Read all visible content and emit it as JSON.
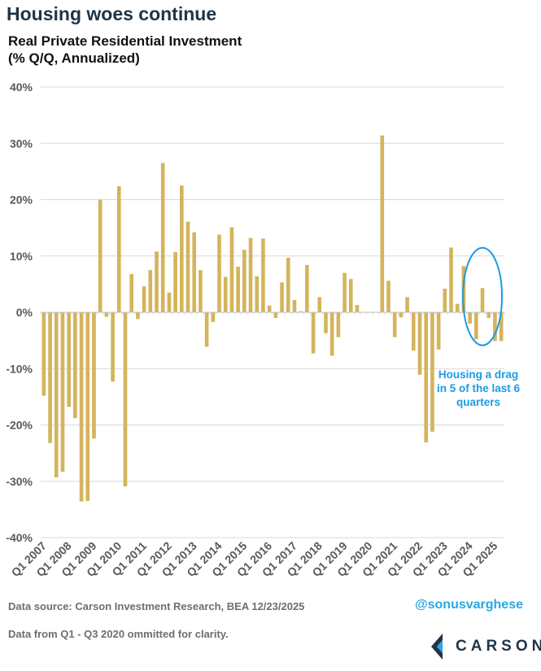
{
  "headline": "Housing woes continue",
  "chart_data": {
    "type": "bar",
    "title_line1": "Real Private Residential Investment",
    "title_line2": "(% Q/Q, Annualized)",
    "ylim": [
      -40,
      40
    ],
    "y_ticks": [
      -40,
      -30,
      -20,
      -10,
      0,
      10,
      20,
      30,
      40
    ],
    "y_tick_labels": [
      "-40%",
      "-30%",
      "-20%",
      "-10%",
      "0%",
      "10%",
      "20%",
      "30%",
      "40%"
    ],
    "grid": true,
    "bar_color": "#d4b45c",
    "x_tick_labels": [
      "Q1 2007",
      "Q1 2008",
      "Q1 2009",
      "Q1 2010",
      "Q1 2011",
      "Q1 2012",
      "Q1 2013",
      "Q1 2014",
      "Q1 2015",
      "Q1 2016",
      "Q1 2017",
      "Q1 2018",
      "Q1 2019",
      "Q1 2020",
      "Q1 2021",
      "Q1 2022",
      "Q1 2023",
      "Q1 2024",
      "Q1 2025"
    ],
    "series": [
      {
        "values": [
          -14.8,
          -23.2,
          -29.3,
          -28.3,
          -16.8,
          -18.8,
          -33.6,
          -33.5,
          -22.4,
          20.0,
          -0.8,
          -12.3,
          22.4,
          -30.9,
          6.8,
          -1.2,
          4.6,
          7.5,
          10.8,
          26.5,
          3.5,
          10.7,
          22.5,
          16.1,
          14.2,
          7.5,
          -6.1,
          -1.7,
          13.8,
          6.3,
          15.1,
          8.1,
          11.1,
          13.2,
          6.4,
          13.1,
          1.2,
          -1.0,
          5.3,
          9.7,
          2.2,
          0.2,
          8.4,
          -7.3,
          2.7,
          -3.7,
          -7.7,
          -4.4,
          7.0,
          5.9,
          1.3,
          null,
          null,
          null,
          31.4,
          5.6,
          -4.4,
          -0.9,
          2.7,
          -6.8,
          -11.1,
          -23.1,
          -21.2,
          -6.6,
          4.2,
          11.5,
          1.5,
          8.2,
          -2.0,
          -4.8,
          4.3,
          -1.0,
          -5.1,
          -5.1
        ]
      }
    ],
    "annotation": [
      "Housing a drag",
      "in 5 of the last 6",
      "quarters"
    ],
    "annotation_color": "#1b9be3"
  },
  "footer": {
    "source": "Data source: Carson Investment Research, BEA   12/23/2025",
    "handle": "@sonusvarghese",
    "note": "Data from Q1 - Q3 2020 ommitted for clarity."
  },
  "logo": {
    "text": "CARSON",
    "icon": "carson-chevron-icon"
  }
}
